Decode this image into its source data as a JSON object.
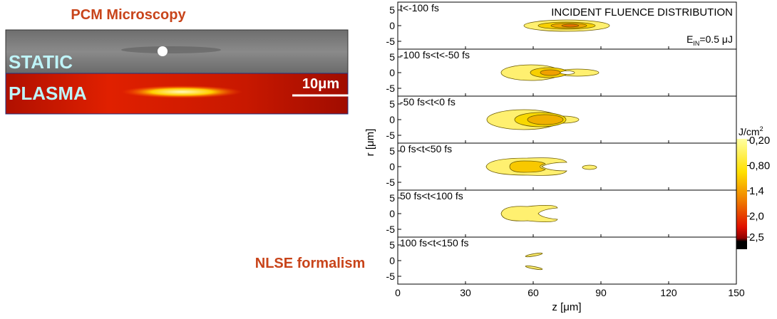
{
  "left": {
    "title": "PCM Microscopy",
    "static_label": "STATIC",
    "plasma_label": "PLASMA",
    "scale_bar": "10μm",
    "bottom_label": "NLSE formalism"
  },
  "plot": {
    "title": "INCIDENT FLUENCE DISTRIBUTION",
    "energy": {
      "main": "E",
      "sub": "IN",
      "rest": "=0.5 μJ"
    },
    "panels": [
      {
        "label": "t<-100 fs"
      },
      {
        "label": "-100 fs<t<-50 fs"
      },
      {
        "label": "-50 fs<t<0 fs"
      },
      {
        "label": "0 fs<t<50 fs"
      },
      {
        "label": "50 fs<t<100 fs"
      },
      {
        "label": "100 fs<t<150 fs"
      }
    ],
    "rlim": [
      -7.5,
      7.5
    ],
    "rticks": [
      5,
      0,
      -5
    ],
    "zlim": [
      0,
      150
    ],
    "zticks": [
      0,
      30,
      60,
      90,
      120,
      150
    ],
    "xlabel": "z [μm]",
    "ylabel": "r [μm]",
    "colorbar": {
      "unit": "J/cm",
      "unit_sup": "2",
      "ticks": [
        {
          "value": 0.2,
          "label": "0,20"
        },
        {
          "value": 0.8,
          "label": "0,80"
        },
        {
          "value": 1.4,
          "label": "1,4"
        },
        {
          "value": 2.0,
          "label": "2,0"
        },
        {
          "value": 2.5,
          "label": "2,5"
        }
      ]
    }
  }
}
